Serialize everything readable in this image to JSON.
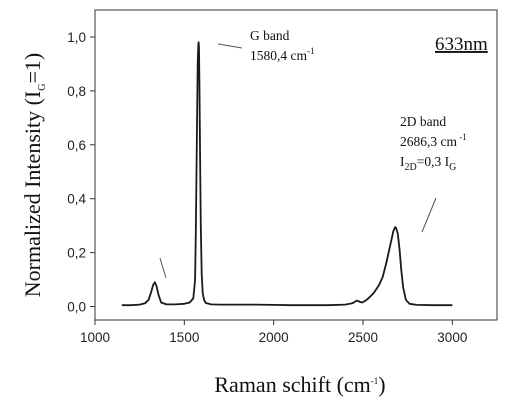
{
  "chart_data": {
    "type": "line",
    "title": "",
    "xlabel": {
      "main": "Raman schift (cm",
      "sup": "-1",
      "end": ")"
    },
    "ylabel": {
      "main": "Normalized Intensity (I",
      "sub": "G",
      "end": "=1)"
    },
    "xlim": [
      1000,
      3250
    ],
    "ylim": [
      -0.05,
      1.1
    ],
    "xticks": [
      1000,
      1500,
      2000,
      2500,
      3000
    ],
    "xtick_labels": [
      "1000",
      "1500",
      "2000",
      "2500",
      "3000"
    ],
    "yticks": [
      0.0,
      0.2,
      0.4,
      0.6,
      0.8,
      1.0
    ],
    "ytick_labels": [
      "0,0",
      "0,2",
      "0,4",
      "0,6",
      "0,8",
      "1,0"
    ],
    "grid": false,
    "series": [
      {
        "x": [
          1150,
          1200,
          1250,
          1280,
          1300,
          1315,
          1325,
          1335,
          1345,
          1355,
          1370,
          1400,
          1450,
          1500,
          1530,
          1550,
          1560,
          1565,
          1570,
          1575,
          1578,
          1580,
          1582,
          1585,
          1588,
          1592,
          1597,
          1603,
          1610,
          1620,
          1650,
          1700,
          1800,
          1900,
          2000,
          2100,
          2200,
          2300,
          2400,
          2440,
          2460,
          2470,
          2480,
          2495,
          2510,
          2530,
          2560,
          2590,
          2610,
          2630,
          2650,
          2660,
          2670,
          2680,
          2686,
          2695,
          2705,
          2715,
          2725,
          2740,
          2760,
          2800,
          2900,
          3000
        ],
        "y": [
          0.005,
          0.005,
          0.007,
          0.012,
          0.025,
          0.055,
          0.08,
          0.09,
          0.075,
          0.045,
          0.015,
          0.008,
          0.008,
          0.01,
          0.015,
          0.03,
          0.1,
          0.3,
          0.6,
          0.9,
          0.97,
          0.98,
          0.96,
          0.8,
          0.55,
          0.3,
          0.12,
          0.05,
          0.025,
          0.013,
          0.008,
          0.007,
          0.007,
          0.007,
          0.006,
          0.005,
          0.005,
          0.005,
          0.007,
          0.012,
          0.02,
          0.022,
          0.018,
          0.015,
          0.02,
          0.03,
          0.05,
          0.08,
          0.11,
          0.16,
          0.22,
          0.25,
          0.28,
          0.295,
          0.29,
          0.27,
          0.21,
          0.13,
          0.07,
          0.025,
          0.01,
          0.006,
          0.005,
          0.005
        ]
      }
    ],
    "annotations": [
      {
        "id": "g",
        "lines": [
          {
            "text": "G band"
          },
          {
            "text": "1580,4 cm",
            "sup": "-1"
          }
        ]
      },
      {
        "id": "2d",
        "lines": [
          {
            "text": "2D band"
          },
          {
            "text": "2686,3 cm",
            "sup": " -1"
          },
          {
            "text": "I",
            "sub": "2D",
            "text2": "=0,3 I",
            "sub2": "G"
          }
        ]
      }
    ],
    "inset_label": "633nm"
  }
}
